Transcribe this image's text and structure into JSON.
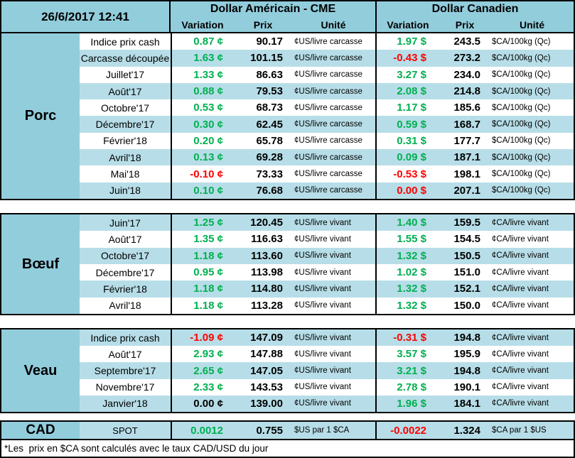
{
  "colors": {
    "header_bg": "#92CDDC",
    "row_alt_bg": "#B7DEE8",
    "positive_text": "#00B050",
    "negative_text": "#FF0000",
    "border": "#000000"
  },
  "header": {
    "datetime": "26/6/2017 12:41",
    "us_title": "Dollar Américain - CME",
    "ca_title": "Dollar Canadien",
    "col_variation": "Variation",
    "col_prix": "Prix",
    "col_unite": "Unité"
  },
  "sections": [
    {
      "name": "Porc",
      "rows": [
        {
          "label": "Indice prix cash",
          "us_var": "0.87 ¢",
          "us_var_color": "green",
          "us_prix": "90.17",
          "us_unit": "¢US/livre carcasse",
          "ca_var": "1.97 $",
          "ca_var_color": "green",
          "ca_prix": "243.5",
          "ca_unit": "$CA/100kg (Qc)"
        },
        {
          "label": "Carcasse découpée",
          "us_var": "1.63 ¢",
          "us_var_color": "green",
          "us_prix": "101.15",
          "us_unit": "¢US/livre carcasse",
          "ca_var": "-0.43 $",
          "ca_var_color": "red",
          "ca_prix": "273.2",
          "ca_unit": "$CA/100kg (Qc)"
        },
        {
          "label": "Juillet'17",
          "us_var": "1.33 ¢",
          "us_var_color": "green",
          "us_prix": "86.63",
          "us_unit": "¢US/livre carcasse",
          "ca_var": "3.27 $",
          "ca_var_color": "green",
          "ca_prix": "234.0",
          "ca_unit": "$CA/100kg (Qc)"
        },
        {
          "label": "Août'17",
          "us_var": "0.88 ¢",
          "us_var_color": "green",
          "us_prix": "79.53",
          "us_unit": "¢US/livre carcasse",
          "ca_var": "2.08 $",
          "ca_var_color": "green",
          "ca_prix": "214.8",
          "ca_unit": "$CA/100kg (Qc)"
        },
        {
          "label": "Octobre'17",
          "us_var": "0.53 ¢",
          "us_var_color": "green",
          "us_prix": "68.73",
          "us_unit": "¢US/livre carcasse",
          "ca_var": "1.17 $",
          "ca_var_color": "green",
          "ca_prix": "185.6",
          "ca_unit": "$CA/100kg (Qc)"
        },
        {
          "label": "Décembre'17",
          "us_var": "0.30 ¢",
          "us_var_color": "green",
          "us_prix": "62.45",
          "us_unit": "¢US/livre carcasse",
          "ca_var": "0.59 $",
          "ca_var_color": "green",
          "ca_prix": "168.7",
          "ca_unit": "$CA/100kg (Qc)"
        },
        {
          "label": "Février'18",
          "us_var": "0.20 ¢",
          "us_var_color": "green",
          "us_prix": "65.78",
          "us_unit": "¢US/livre carcasse",
          "ca_var": "0.31 $",
          "ca_var_color": "green",
          "ca_prix": "177.7",
          "ca_unit": "$CA/100kg (Qc)"
        },
        {
          "label": "Avril'18",
          "us_var": "0.13 ¢",
          "us_var_color": "green",
          "us_prix": "69.28",
          "us_unit": "¢US/livre carcasse",
          "ca_var": "0.09 $",
          "ca_var_color": "green",
          "ca_prix": "187.1",
          "ca_unit": "$CA/100kg (Qc)"
        },
        {
          "label": "Mai'18",
          "us_var": "-0.10 ¢",
          "us_var_color": "red",
          "us_prix": "73.33",
          "us_unit": "¢US/livre carcasse",
          "ca_var": "-0.53 $",
          "ca_var_color": "red",
          "ca_prix": "198.1",
          "ca_unit": "$CA/100kg (Qc)"
        },
        {
          "label": "Juin'18",
          "us_var": "0.10 ¢",
          "us_var_color": "green",
          "us_prix": "76.68",
          "us_unit": "¢US/livre carcasse",
          "ca_var": "0.00 $",
          "ca_var_color": "red",
          "ca_prix": "207.1",
          "ca_unit": "$CA/100kg (Qc)"
        }
      ]
    },
    {
      "name": "Bœuf",
      "rows": [
        {
          "label": "Juin'17",
          "us_var": "1.25 ¢",
          "us_var_color": "green",
          "us_prix": "120.45",
          "us_unit": "¢US/livre vivant",
          "ca_var": "1.40 $",
          "ca_var_color": "green",
          "ca_prix": "159.5",
          "ca_unit": "¢CA/livre vivant"
        },
        {
          "label": "Août'17",
          "us_var": "1.35 ¢",
          "us_var_color": "green",
          "us_prix": "116.63",
          "us_unit": "¢US/livre vivant",
          "ca_var": "1.55 $",
          "ca_var_color": "green",
          "ca_prix": "154.5",
          "ca_unit": "¢CA/livre vivant"
        },
        {
          "label": "Octobre'17",
          "us_var": "1.18 ¢",
          "us_var_color": "green",
          "us_prix": "113.60",
          "us_unit": "¢US/livre vivant",
          "ca_var": "1.32 $",
          "ca_var_color": "green",
          "ca_prix": "150.5",
          "ca_unit": "¢CA/livre vivant"
        },
        {
          "label": "Décembre'17",
          "us_var": "0.95 ¢",
          "us_var_color": "green",
          "us_prix": "113.98",
          "us_unit": "¢US/livre vivant",
          "ca_var": "1.02 $",
          "ca_var_color": "green",
          "ca_prix": "151.0",
          "ca_unit": "¢CA/livre vivant"
        },
        {
          "label": "Février'18",
          "us_var": "1.18 ¢",
          "us_var_color": "green",
          "us_prix": "114.80",
          "us_unit": "¢US/livre vivant",
          "ca_var": "1.32 $",
          "ca_var_color": "green",
          "ca_prix": "152.1",
          "ca_unit": "¢CA/livre vivant"
        },
        {
          "label": "Avril'18",
          "us_var": "1.18 ¢",
          "us_var_color": "green",
          "us_prix": "113.28",
          "us_unit": "¢US/livre vivant",
          "ca_var": "1.32 $",
          "ca_var_color": "green",
          "ca_prix": "150.0",
          "ca_unit": "¢CA/livre vivant"
        }
      ]
    },
    {
      "name": "Veau",
      "rows": [
        {
          "label": "Indice prix cash",
          "us_var": "-1.09 ¢",
          "us_var_color": "red",
          "us_prix": "147.09",
          "us_unit": "¢US/livre vivant",
          "ca_var": "-0.31 $",
          "ca_var_color": "red",
          "ca_prix": "194.8",
          "ca_unit": "¢CA/livre vivant"
        },
        {
          "label": "Août'17",
          "us_var": "2.93 ¢",
          "us_var_color": "green",
          "us_prix": "147.88",
          "us_unit": "¢US/livre vivant",
          "ca_var": "3.57 $",
          "ca_var_color": "green",
          "ca_prix": "195.9",
          "ca_unit": "¢CA/livre vivant"
        },
        {
          "label": "Septembre'17",
          "us_var": "2.65 ¢",
          "us_var_color": "green",
          "us_prix": "147.05",
          "us_unit": "¢US/livre vivant",
          "ca_var": "3.21 $",
          "ca_var_color": "green",
          "ca_prix": "194.8",
          "ca_unit": "¢CA/livre vivant"
        },
        {
          "label": "Novembre'17",
          "us_var": "2.33 ¢",
          "us_var_color": "green",
          "us_prix": "143.53",
          "us_unit": "¢US/livre vivant",
          "ca_var": "2.78 $",
          "ca_var_color": "green",
          "ca_prix": "190.1",
          "ca_unit": "¢CA/livre vivant"
        },
        {
          "label": "Janvier'18",
          "us_var": "0.00 ¢",
          "us_var_color": "black",
          "us_prix": "139.00",
          "us_unit": "¢US/livre vivant",
          "ca_var": "1.96 $",
          "ca_var_color": "green",
          "ca_prix": "184.1",
          "ca_unit": "¢CA/livre vivant"
        }
      ]
    }
  ],
  "cad": {
    "name": "CAD",
    "label": "SPOT",
    "us_var": "0.0012",
    "us_var_color": "green",
    "us_prix": "0.755",
    "us_unit": "$US par 1 $CA",
    "ca_var": "-0.0022",
    "ca_var_color": "red",
    "ca_prix": "1.324",
    "ca_unit": "$CA par 1 $US"
  },
  "footnote": "*Les  prix en $CA sont calculés avec le taux CAD/USD du jour"
}
